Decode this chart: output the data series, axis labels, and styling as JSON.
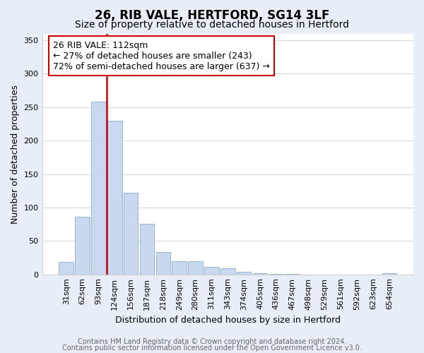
{
  "title": "26, RIB VALE, HERTFORD, SG14 3LF",
  "subtitle": "Size of property relative to detached houses in Hertford",
  "xlabel": "Distribution of detached houses by size in Hertford",
  "ylabel": "Number of detached properties",
  "categories": [
    "31sqm",
    "62sqm",
    "93sqm",
    "124sqm",
    "156sqm",
    "187sqm",
    "218sqm",
    "249sqm",
    "280sqm",
    "311sqm",
    "343sqm",
    "374sqm",
    "405sqm",
    "436sqm",
    "467sqm",
    "498sqm",
    "529sqm",
    "561sqm",
    "592sqm",
    "623sqm",
    "654sqm"
  ],
  "values": [
    19,
    86,
    258,
    230,
    122,
    76,
    33,
    20,
    20,
    11,
    9,
    4,
    2,
    1,
    1,
    0,
    0,
    0,
    0,
    0,
    2
  ],
  "bar_color": "#c8d8ee",
  "bar_edge_color": "#9ab4d4",
  "vline_color": "#cc0000",
  "annotation_text": "26 RIB VALE: 112sqm\n← 27% of detached houses are smaller (243)\n72% of semi-detached houses are larger (637) →",
  "annotation_box_color": "white",
  "annotation_box_edge_color": "#cc0000",
  "ylim": [
    0,
    360
  ],
  "yticks": [
    0,
    50,
    100,
    150,
    200,
    250,
    300,
    350
  ],
  "footer1": "Contains HM Land Registry data © Crown copyright and database right 2024.",
  "footer2": "Contains public sector information licensed under the Open Government Licence v3.0.",
  "fig_background_color": "#e8eef8",
  "plot_background_color": "#ffffff",
  "grid_color": "#d0d8e8",
  "title_fontsize": 12,
  "subtitle_fontsize": 10,
  "axis_label_fontsize": 9,
  "tick_fontsize": 8,
  "annotation_fontsize": 9,
  "footer_fontsize": 7
}
